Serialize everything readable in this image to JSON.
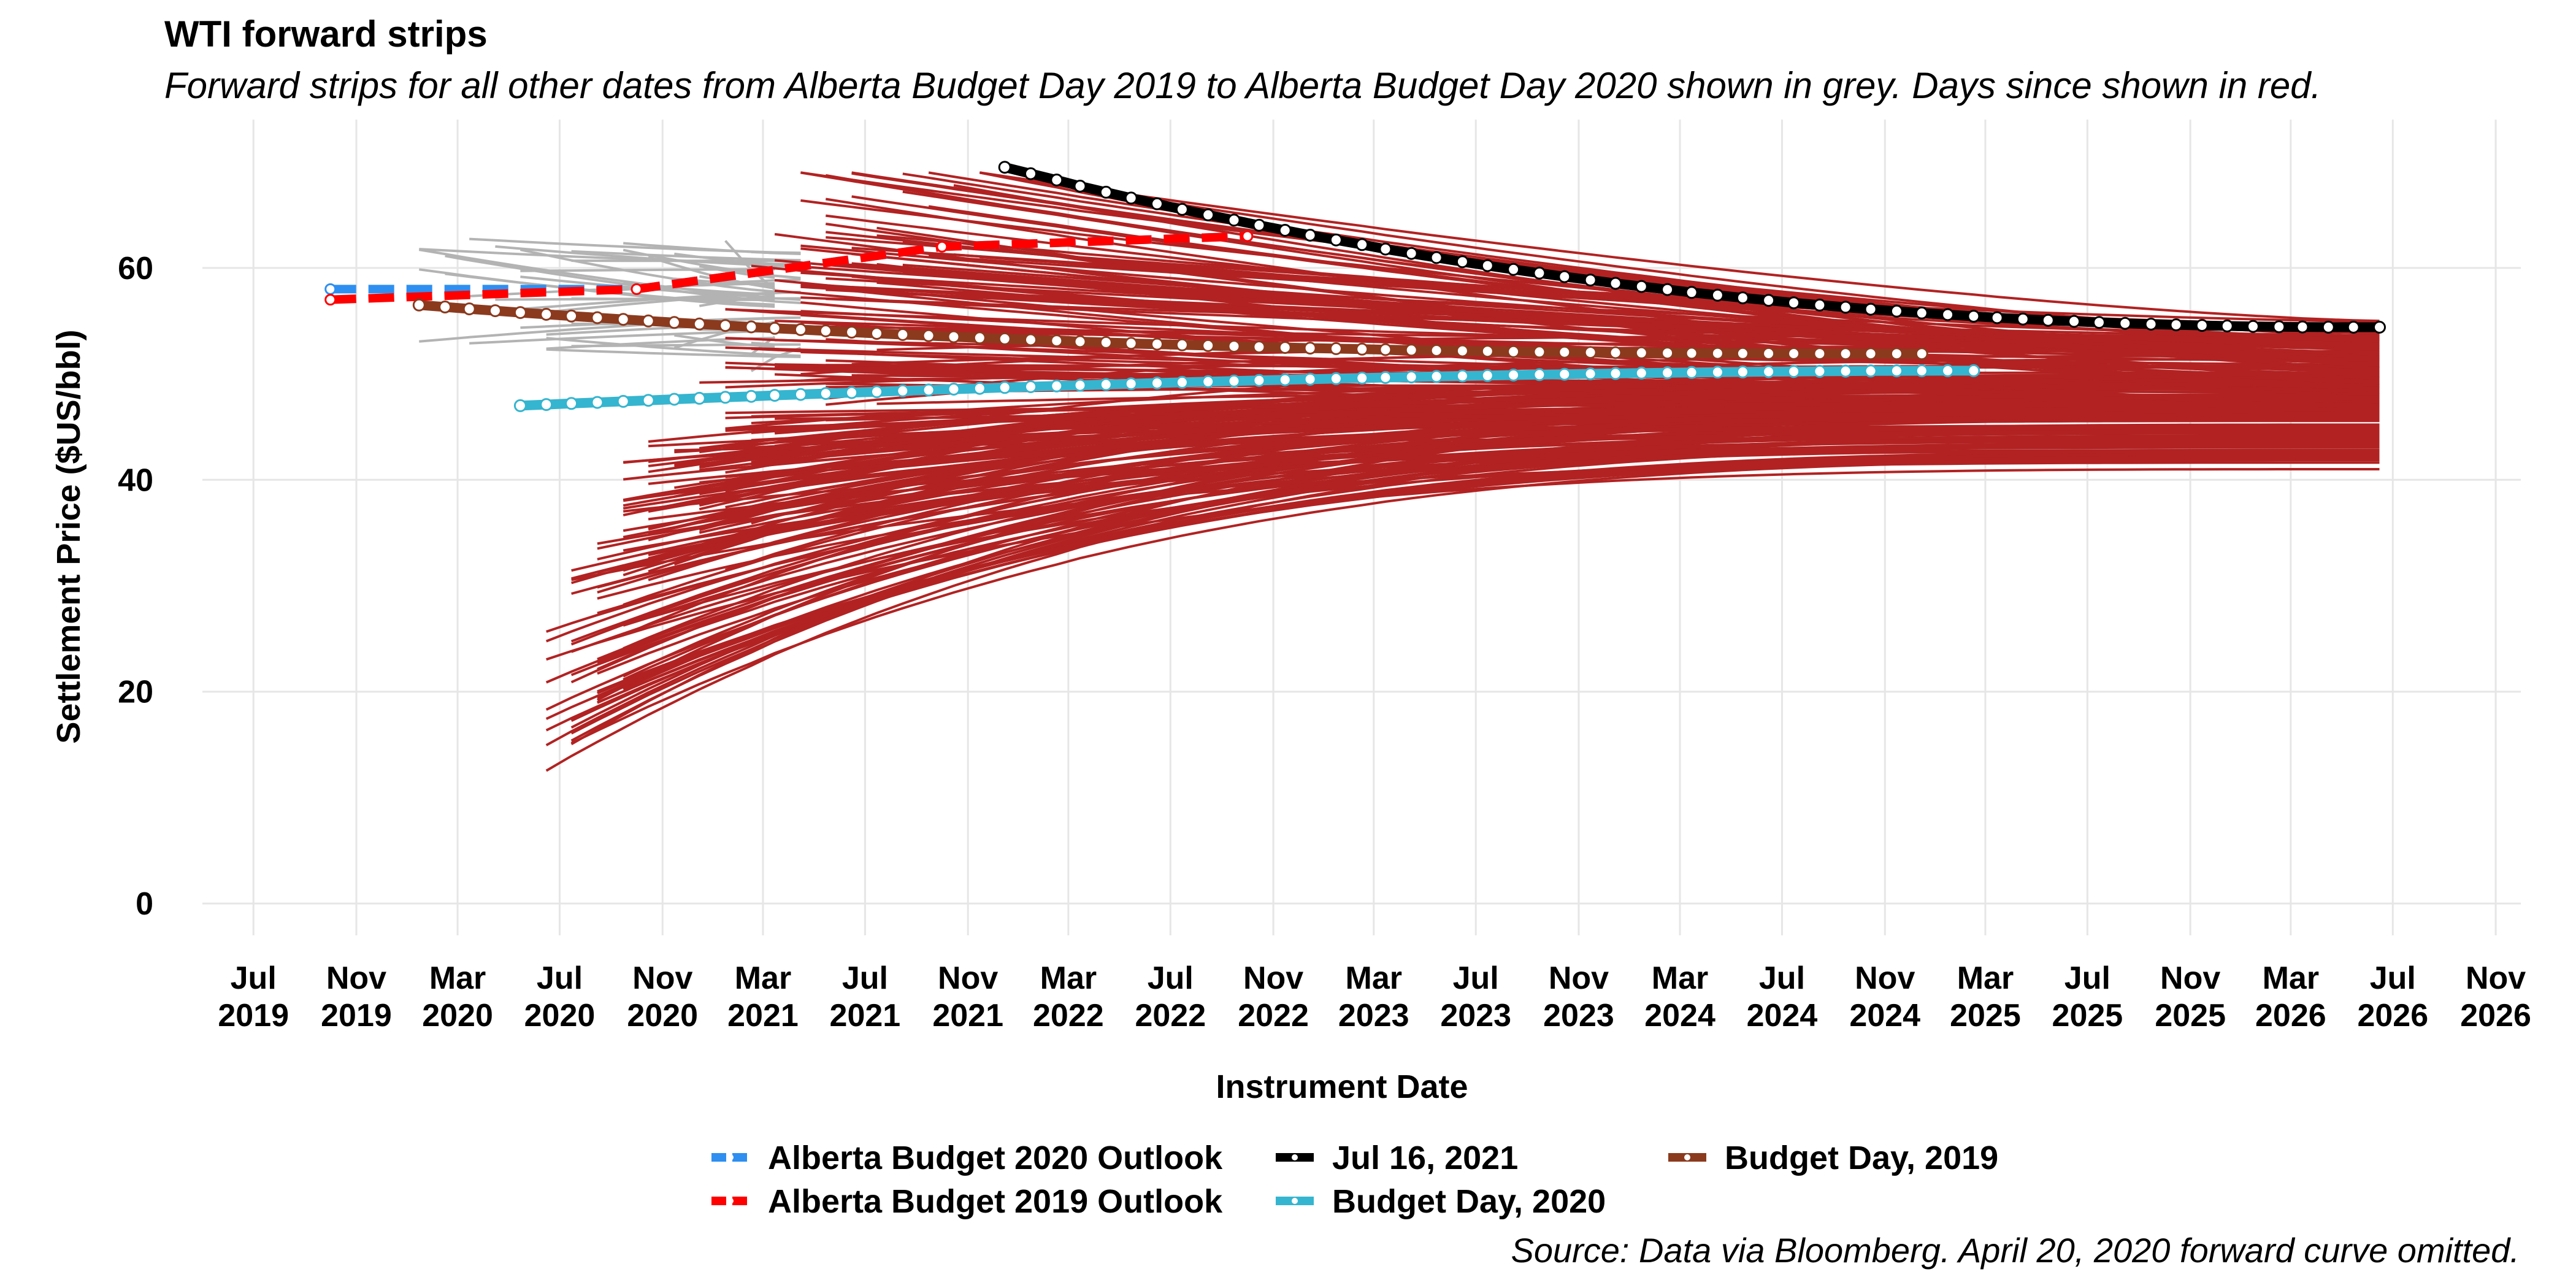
{
  "chart_data": {
    "type": "line",
    "title": "WTI forward strips",
    "subtitle": "Forward strips for all other dates from Alberta Budget Day 2019 to Alberta Budget Day 2020 shown in grey. Days since shown in red.",
    "caption": "Source: Data via Bloomberg. April 20, 2020 forward curve omitted.",
    "xlabel": "Instrument Date",
    "ylabel": "Settlement Price ($US/bbl)",
    "xlim": [
      "2019-05-01",
      "2026-12-01"
    ],
    "ylim": [
      -3,
      74
    ],
    "grid": true,
    "legend_position": "bottom",
    "x_ticks": [
      {
        "date": "2019-07-01",
        "line1": "Jul",
        "line2": "2019"
      },
      {
        "date": "2019-11-01",
        "line1": "Nov",
        "line2": "2019"
      },
      {
        "date": "2020-03-01",
        "line1": "Mar",
        "line2": "2020"
      },
      {
        "date": "2020-07-01",
        "line1": "Jul",
        "line2": "2020"
      },
      {
        "date": "2020-11-01",
        "line1": "Nov",
        "line2": "2020"
      },
      {
        "date": "2021-03-01",
        "line1": "Mar",
        "line2": "2021"
      },
      {
        "date": "2021-07-01",
        "line1": "Jul",
        "line2": "2021"
      },
      {
        "date": "2021-11-01",
        "line1": "Nov",
        "line2": "2021"
      },
      {
        "date": "2022-03-01",
        "line1": "Mar",
        "line2": "2022"
      },
      {
        "date": "2022-07-01",
        "line1": "Jul",
        "line2": "2022"
      },
      {
        "date": "2022-11-01",
        "line1": "Nov",
        "line2": "2022"
      },
      {
        "date": "2023-03-01",
        "line1": "Mar",
        "line2": "2023"
      },
      {
        "date": "2023-07-01",
        "line1": "Jul",
        "line2": "2023"
      },
      {
        "date": "2023-11-01",
        "line1": "Nov",
        "line2": "2023"
      },
      {
        "date": "2024-03-01",
        "line1": "Mar",
        "line2": "2024"
      },
      {
        "date": "2024-07-01",
        "line1": "Jul",
        "line2": "2024"
      },
      {
        "date": "2024-11-01",
        "line1": "Nov",
        "line2": "2024"
      },
      {
        "date": "2025-03-01",
        "line1": "Mar",
        "line2": "2025"
      },
      {
        "date": "2025-07-01",
        "line1": "Jul",
        "line2": "2025"
      },
      {
        "date": "2025-11-01",
        "line1": "Nov",
        "line2": "2025"
      },
      {
        "date": "2026-03-01",
        "line1": "Mar",
        "line2": "2026"
      },
      {
        "date": "2026-07-01",
        "line1": "Jul",
        "line2": "2026"
      },
      {
        "date": "2026-11-01",
        "line1": "Nov",
        "line2": "2026"
      }
    ],
    "y_ticks": [
      0,
      20,
      40,
      60
    ],
    "colors": {
      "grey_strips": "#b3b3b3",
      "red_strips": "#b22222",
      "outlook_2020": "#2e8ff0",
      "outlook_2019": "#ff0000",
      "jul16_2021": "#000000",
      "budget_day_2020": "#35b5cf",
      "budget_day_2019": "#8b3a1e",
      "point_fill": "#ffffff"
    },
    "series": [
      {
        "name": "Alberta Budget 2020 Outlook",
        "style": "dashed",
        "color": "#2e8ff0",
        "points": [
          [
            "2019-10-01",
            58.0
          ],
          [
            "2020-10-01",
            58.0
          ],
          [
            "2021-10-01",
            62.0
          ],
          [
            "2022-10-01",
            63.0
          ]
        ]
      },
      {
        "name": "Alberta Budget 2019 Outlook",
        "style": "dashed",
        "color": "#ff0000",
        "points": [
          [
            "2019-10-01",
            57.0
          ],
          [
            "2020-10-01",
            58.0
          ],
          [
            "2021-10-01",
            62.0
          ],
          [
            "2022-10-01",
            63.0
          ]
        ]
      },
      {
        "name": "Jul 16, 2021",
        "style": "monthly",
        "color": "#000000",
        "start": "2021-12-15",
        "end": "2026-06-15",
        "p0": 69.5,
        "p1": 54.4,
        "shape": 1.1
      },
      {
        "name": "Budget Day, 2020",
        "style": "monthly",
        "color": "#35b5cf",
        "start": "2020-05-15",
        "end": "2025-02-15",
        "p0": 47.0,
        "p1": 50.3,
        "shape": 0.9
      },
      {
        "name": "Budget Day, 2019",
        "style": "monthly",
        "color": "#8b3a1e",
        "start": "2020-01-15",
        "end": "2024-12-15",
        "p0": 56.5,
        "p1": 51.9,
        "shape": 1.2
      }
    ],
    "background_strips": {
      "grey": {
        "count": 45,
        "start_from": "2020-01-15",
        "start_to": "2021-03-15",
        "end_from": "2021-03-01",
        "end_to": "2021-04-01",
        "price_min": 50.0,
        "price_max": 63.0
      },
      "red": {
        "count": 240,
        "start_from": "2020-06-15",
        "start_to": "2021-12-15",
        "end": "2026-06-15",
        "front_price_min": 10.0,
        "front_price_max": 69.0,
        "back_price_min": 41.0,
        "back_price_max": 55.0
      }
    },
    "legend": [
      {
        "label": "Alberta Budget 2020 Outlook",
        "color": "#2e8ff0"
      },
      {
        "label": "Alberta Budget 2019 Outlook",
        "color": "#ff0000"
      },
      {
        "label": "Jul 16, 2021",
        "color": "#000000"
      },
      {
        "label": "Budget Day, 2020",
        "color": "#35b5cf"
      },
      {
        "label": "Budget Day, 2019",
        "color": "#8b3a1e"
      }
    ]
  }
}
